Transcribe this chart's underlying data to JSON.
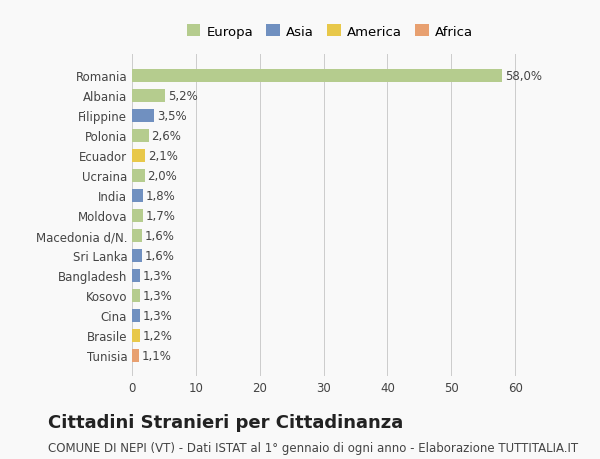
{
  "categories": [
    "Romania",
    "Albania",
    "Filippine",
    "Polonia",
    "Ecuador",
    "Ucraina",
    "India",
    "Moldova",
    "Macedonia d/N.",
    "Sri Lanka",
    "Bangladesh",
    "Kosovo",
    "Cina",
    "Brasile",
    "Tunisia"
  ],
  "values": [
    58.0,
    5.2,
    3.5,
    2.6,
    2.1,
    2.0,
    1.8,
    1.7,
    1.6,
    1.6,
    1.3,
    1.3,
    1.3,
    1.2,
    1.1
  ],
  "labels": [
    "58,0%",
    "5,2%",
    "3,5%",
    "2,6%",
    "2,1%",
    "2,0%",
    "1,8%",
    "1,7%",
    "1,6%",
    "1,6%",
    "1,3%",
    "1,3%",
    "1,3%",
    "1,2%",
    "1,1%"
  ],
  "continents": [
    "Europa",
    "Europa",
    "Asia",
    "Europa",
    "America",
    "Europa",
    "Asia",
    "Europa",
    "Europa",
    "Asia",
    "Asia",
    "Europa",
    "Asia",
    "America",
    "Africa"
  ],
  "continent_colors": {
    "Europa": "#b5cc8e",
    "Asia": "#7090c0",
    "America": "#e8c84a",
    "Africa": "#e8a070"
  },
  "legend_order": [
    "Europa",
    "Asia",
    "America",
    "Africa"
  ],
  "title": "Cittadini Stranieri per Cittadinanza",
  "subtitle": "COMUNE DI NEPI (VT) - Dati ISTAT al 1° gennaio di ogni anno - Elaborazione TUTTITALIA.IT",
  "xlim": [
    0,
    62
  ],
  "xticks": [
    0,
    10,
    20,
    30,
    40,
    50,
    60
  ],
  "bg_color": "#f9f9f9",
  "grid_color": "#cccccc",
  "bar_height": 0.65,
  "label_fontsize": 8.5,
  "title_fontsize": 13,
  "subtitle_fontsize": 8.5,
  "tick_fontsize": 8.5
}
